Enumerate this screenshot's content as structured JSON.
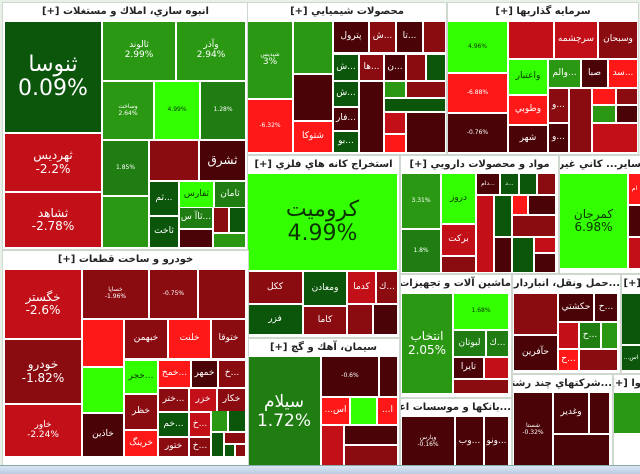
{
  "colors": {
    "strong_up": "#33ff00",
    "up": "#2a9812",
    "dark_up": "#0b560b",
    "down": "#c20f18",
    "strong_down": "#ff1818",
    "dark_down": "#4a0306"
  },
  "s1": {
    "title": "انبوه سازي، املاك و مستغلات [+]",
    "t": [
      {
        "n": "ثنوسا",
        "p": "0.09%"
      },
      {
        "n": "ثهرديس",
        "p": "-2.2%"
      },
      {
        "n": "ثشاهد",
        "p": "-2.78%"
      },
      {
        "n": "ثالوند",
        "p": "2.99%"
      },
      {
        "n": "وآذر",
        "p": "2.94%"
      },
      {
        "n": "وساخت",
        "p": "2.64%"
      },
      {
        "p": "4.99%"
      },
      {
        "p": "1.28%"
      },
      {
        "p": "1.85%"
      },
      {
        "n": "ثشرق"
      },
      {
        "n": "ثم..."
      },
      {
        "n": "ثفارس"
      },
      {
        "n": "ثامان"
      },
      {
        "n": "ثاآ س..."
      },
      {
        "n": "ثاخت"
      }
    ]
  },
  "s2": {
    "title": "محصولات شيميايي [+]",
    "t": [
      {
        "n": "شپديس",
        "p": "3%"
      },
      {
        "p": "-6.32%"
      },
      {
        "n": "شتوكا"
      },
      {
        "n": "پترول"
      },
      {
        "n": "ش..."
      },
      {
        "n": "تا..."
      },
      {
        "n": "ش..."
      },
      {
        "n": "ها..."
      },
      {
        "n": "ن..."
      },
      {
        "n": "ش..."
      },
      {
        "n": "فار..."
      },
      {
        "n": "بو..."
      }
    ]
  },
  "s3": {
    "title": "سرمايه گذاريها [+]",
    "t": [
      {
        "p": "4.96%"
      },
      {
        "p": "-6.88%"
      },
      {
        "p": "-0.76%"
      },
      {
        "n": "سرچشمه"
      },
      {
        "n": "وسبحان"
      },
      {
        "n": "واعتبار"
      },
      {
        "n": "والم..."
      },
      {
        "n": "صبا"
      },
      {
        "n": "سد..."
      },
      {
        "n": "وطوبي"
      },
      {
        "n": "شهر"
      },
      {
        "n": "و..."
      },
      {
        "n": "و..."
      }
    ]
  },
  "s4": {
    "title": "استخراج كانه هاي فلزي [+]",
    "t": [
      {
        "n": "كروميت",
        "p": "4.99%"
      },
      {
        "n": "ككل"
      },
      {
        "n": "ومعادن"
      },
      {
        "n": "كدما"
      },
      {
        "n": "ك..."
      },
      {
        "n": "فزر"
      },
      {
        "n": "كاما"
      }
    ]
  },
  "s5": {
    "title": "مواد و محصولات دارويي [+]",
    "t": [
      {
        "p": "3.31%"
      },
      {
        "p": "1.8%"
      },
      {
        "n": "دروز"
      },
      {
        "n": "بركت"
      },
      {
        "n": "دام..."
      },
      {
        "n": "د..."
      }
    ]
  },
  "s6": {
    "title": "ساير... كاني غيرفلزي [+]",
    "t": [
      {
        "n": "كمرجان",
        "p": "6.98%"
      },
      {
        "n": "ام"
      }
    ]
  },
  "s7": {
    "title": "سيمان، آهك و گچ [+]",
    "t": [
      {
        "n": "سيلام",
        "p": "1.72%"
      },
      {
        "p": "-0.6%"
      },
      {
        "n": "...اس"
      },
      {
        "n": "...ا"
      }
    ]
  },
  "s8": {
    "title": "ماشين آلات و تجهيزات [+]",
    "t": [
      {
        "n": "انتخاب",
        "p": "2.05%"
      },
      {
        "p": "1.68%"
      },
      {
        "n": "لبوتان"
      },
      {
        "n": "ك..."
      },
      {
        "n": "تايرا"
      }
    ]
  },
  "s9": {
    "title": "...حمل ونقل، انبارداري [+]",
    "t": [
      {
        "n": "حكشتي"
      },
      {
        "n": "ح..."
      },
      {
        "n": "حآفرين"
      },
      {
        "n": "ح..."
      },
      {
        "n": "ح..."
      }
    ]
  },
  "s10": {
    "title": "...بانكها و موسسات اعتبا [+]",
    "t": [
      {
        "n": "وپارس",
        "p": "-0.16%"
      },
      {
        "n": "وب..."
      },
      {
        "n": "ونو..."
      }
    ]
  },
  "s11": {
    "title": "...شركتهاي چند رشته [+]",
    "t": [
      {
        "n": "وغدير"
      },
      {
        "n": "شستا",
        "p": "-0.32%"
      }
    ]
  },
  "s12": {
    "title": "خودرو و ساخت قطعات [+]",
    "t": [
      {
        "n": "خگستر",
        "p": "-2.6%"
      },
      {
        "n": "خودرو",
        "p": "-1.82%"
      },
      {
        "n": "خاور",
        "p": "-2.24%"
      },
      {
        "n": "خساپا",
        "p": "-1.96%"
      },
      {
        "p": "-0.75%"
      },
      {
        "n": "خبهمن"
      },
      {
        "n": "خلنت"
      },
      {
        "n": "ختوقا"
      },
      {
        "n": "خجر..."
      },
      {
        "n": "خمح..."
      },
      {
        "n": "خمهر"
      },
      {
        "n": "خ..."
      },
      {
        "n": "ختر..."
      },
      {
        "n": "خزر"
      },
      {
        "n": "خكار"
      },
      {
        "n": "خظر"
      },
      {
        "n": "خرينگ"
      },
      {
        "n": "خاذين"
      },
      {
        "n": "خم..."
      },
      {
        "n": "ختور"
      },
      {
        "n": "خ..."
      },
      {
        "n": "خ..."
      }
    ]
  },
  "s13": {
    "title": "[+] ...",
    "t": [
      {
        "n": "...اس"
      }
    ]
  },
  "s14": {
    "title": "وا [+]"
  }
}
